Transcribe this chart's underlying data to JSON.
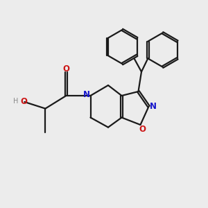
{
  "bg_color": "#ececec",
  "bond_color": "#1a1a1a",
  "N_color": "#1515cc",
  "O_color": "#cc1515",
  "H_color": "#888888",
  "lw": 1.6,
  "figsize": [
    3.0,
    3.0
  ],
  "dpi": 100,
  "xlim": [
    0,
    10
  ],
  "ylim": [
    0,
    10
  ]
}
